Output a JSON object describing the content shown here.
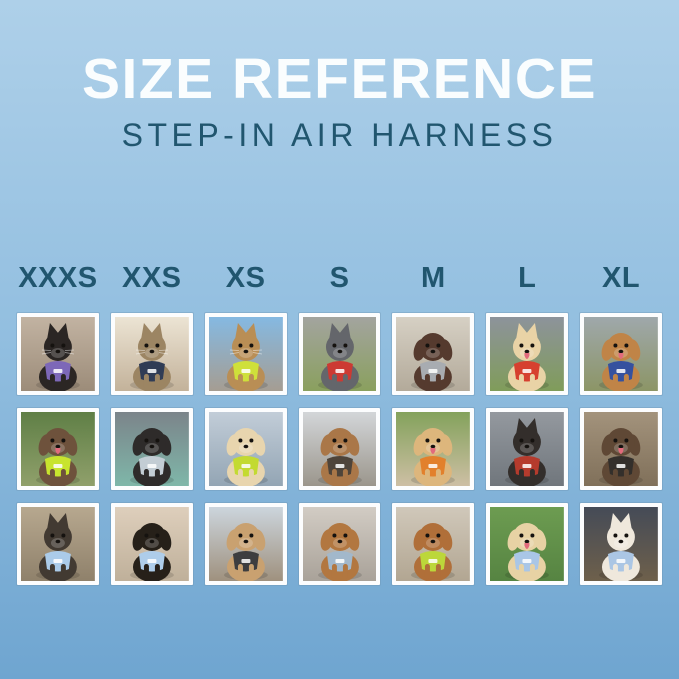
{
  "header": {
    "title": "SIZE REFERENCE",
    "subtitle": "STEP-IN AIR HARNESS"
  },
  "sizes": [
    "XXXS",
    "XXS",
    "XS",
    "S",
    "M",
    "L",
    "XL"
  ],
  "theme": {
    "bg_top": "#aed0e9",
    "bg_mid": "#93bfe0",
    "bg_bottom": "#6fa5d0",
    "title_color": "#fafdfe",
    "teal": "#21566f",
    "frame_color": "#fcfdfe"
  },
  "grid": {
    "columns": 7,
    "rows": 3,
    "cells": [
      {
        "row": 1,
        "size": "XXXS",
        "desc": "black kitten wearing purple harness indoors by stair rail",
        "species": "cat",
        "ears": "pointy",
        "fur": "#2b2624",
        "harness": "#7d68b8",
        "bg_top": "#c2b3a2",
        "bg_bottom": "#9c8c79",
        "tongue": false
      },
      {
        "row": 1,
        "size": "XXS",
        "desc": "tabby cat wearing navy harness beside bright window",
        "species": "cat",
        "ears": "pointy",
        "fur": "#9c8563",
        "harness": "#303c55",
        "bg_top": "#ece4d4",
        "bg_bottom": "#c3b29a",
        "tongue": false
      },
      {
        "row": 1,
        "size": "XS",
        "desc": "bengal cat in car wearing hi-vis yellow-green harness",
        "species": "cat",
        "ears": "pointy",
        "fur": "#b98e55",
        "harness": "#cfe03a",
        "bg_top": "#85b9e2",
        "bg_bottom": "#a59d92",
        "tongue": false
      },
      {
        "row": 1,
        "size": "S",
        "desc": "grey french bulldog wearing red harness on grass path",
        "species": "dog",
        "ears": "pointy",
        "fur": "#64666b",
        "harness": "#cc3a33",
        "bg_top": "#a3a49f",
        "bg_bottom": "#8aa05e",
        "tongue": false
      },
      {
        "row": 1,
        "size": "M",
        "desc": "chocolate longhaired dachshund wearing grey harness on sidewalk",
        "species": "dog",
        "ears": "floppy",
        "fur": "#553a2e",
        "harness": "#a8acb1",
        "bg_top": "#d6d0c4",
        "bg_bottom": "#b3aa9a",
        "tongue": false
      },
      {
        "row": 1,
        "size": "L",
        "desc": "cream shiba inu with red ball wearing red harness in field",
        "species": "dog",
        "ears": "pointy",
        "fur": "#e9d3a6",
        "harness": "#d6402f",
        "bg_top": "#8d939b",
        "bg_bottom": "#809c5a",
        "tongue": true
      },
      {
        "row": 1,
        "size": "XL",
        "desc": "golden retriever wearing blue harness on flower-lined boardwalk",
        "species": "dog",
        "ears": "floppy",
        "fur": "#c08447",
        "harness": "#35519f",
        "bg_top": "#9fa8ab",
        "bg_bottom": "#8c9566",
        "tongue": true
      },
      {
        "row": 2,
        "size": "XXXS",
        "desc": "shaggy brown puppy wearing neon green harness in garden",
        "species": "dog",
        "ears": "floppy",
        "fur": "#6e523c",
        "harness": "#c8e42e",
        "bg_top": "#5f7f46",
        "bg_bottom": "#90a06b",
        "tongue": true
      },
      {
        "row": 2,
        "size": "XXS",
        "desc": "black pug puppy wearing grey harness on teal blanket in car",
        "species": "dog",
        "ears": "floppy",
        "fur": "#2e2b2a",
        "harness": "#c3cdd4",
        "bg_top": "#7b848a",
        "bg_bottom": "#7fb7a9",
        "tongue": false
      },
      {
        "row": 2,
        "size": "XS",
        "desc": "cream longhaired dachshund wearing green harness on boat by water",
        "species": "dog",
        "ears": "floppy",
        "fur": "#e8d5ae",
        "harness": "#c3da31",
        "bg_top": "#c2cdd8",
        "bg_bottom": "#93a5b4",
        "tongue": false
      },
      {
        "row": 2,
        "size": "S",
        "desc": "longhaired dachshund sitting on dock wearing dark harness",
        "species": "dog",
        "ears": "floppy",
        "fur": "#aa7748",
        "harness": "#4e443a",
        "bg_top": "#d3d6d9",
        "bg_bottom": "#9b968c",
        "tongue": false
      },
      {
        "row": 2,
        "size": "M",
        "desc": "smiling golden puppy wearing orange harness at park",
        "species": "dog",
        "ears": "floppy",
        "fur": "#ddb67c",
        "harness": "#e2802c",
        "bg_top": "#83a25c",
        "bg_bottom": "#cdbfa4",
        "tongue": true
      },
      {
        "row": 2,
        "size": "L",
        "desc": "black and tan dog wearing red-black harness inside metal tunnel",
        "species": "dog",
        "ears": "pointy",
        "fur": "#332e2b",
        "harness": "#b53b2d",
        "bg_top": "#94999f",
        "bg_bottom": "#70767c",
        "tongue": false
      },
      {
        "row": 2,
        "size": "XL",
        "desc": "brown and white dog wearing black harness on wooden deck",
        "species": "dog",
        "ears": "floppy",
        "fur": "#5f4835",
        "harness": "#332f2b",
        "bg_top": "#a3937c",
        "bg_bottom": "#80705a",
        "tongue": true
      },
      {
        "row": 3,
        "size": "XXXS",
        "desc": "yorkie puppy wearing light blue harness on sunny path",
        "species": "dog",
        "ears": "pointy",
        "fur": "#423a32",
        "harness": "#abcbe9",
        "bg_top": "#b7a88f",
        "bg_bottom": "#8f816b",
        "tongue": false
      },
      {
        "row": 3,
        "size": "XXS",
        "desc": "black and tan dachshund puppy wearing light blue harness on sofa",
        "species": "dog",
        "ears": "floppy",
        "fur": "#262019",
        "harness": "#aecdea",
        "bg_top": "#decfbc",
        "bg_bottom": "#bfb09a",
        "tongue": false
      },
      {
        "row": 3,
        "size": "XS",
        "desc": "apricot poodle puppy wearing black harness on wooden deck",
        "species": "dog",
        "ears": "floppy",
        "fur": "#c9a170",
        "harness": "#3d3d3f",
        "bg_top": "#ccd5dd",
        "bg_bottom": "#9f917e",
        "tongue": false
      },
      {
        "row": 3,
        "size": "S",
        "desc": "red dachshund wearing grey-blue harness on pavement",
        "species": "dog",
        "ears": "floppy",
        "fur": "#b27740",
        "harness": "#a2b8cb",
        "bg_top": "#d2ccc4",
        "bg_bottom": "#a9a299",
        "tongue": false
      },
      {
        "row": 3,
        "size": "M",
        "desc": "red poodle wearing green harness on sidewalk",
        "species": "dog",
        "ears": "floppy",
        "fur": "#b06f39",
        "harness": "#bcd73a",
        "bg_top": "#d0c8ba",
        "bg_bottom": "#b2a692",
        "tongue": false
      },
      {
        "row": 3,
        "size": "L",
        "desc": "cream golden puppy wearing light blue harness and leash on grass",
        "species": "dog",
        "ears": "floppy",
        "fur": "#e7d2a4",
        "harness": "#a9c6e6",
        "bg_top": "#6d9c51",
        "bg_bottom": "#568442",
        "tongue": true
      },
      {
        "row": 3,
        "size": "XL",
        "desc": "white big-eared dog wearing light blue harness on city street at night",
        "species": "dog",
        "ears": "pointy",
        "fur": "#efe8dc",
        "harness": "#abc6e4",
        "bg_top": "#454b57",
        "bg_bottom": "#6e604b",
        "tongue": false
      }
    ]
  }
}
